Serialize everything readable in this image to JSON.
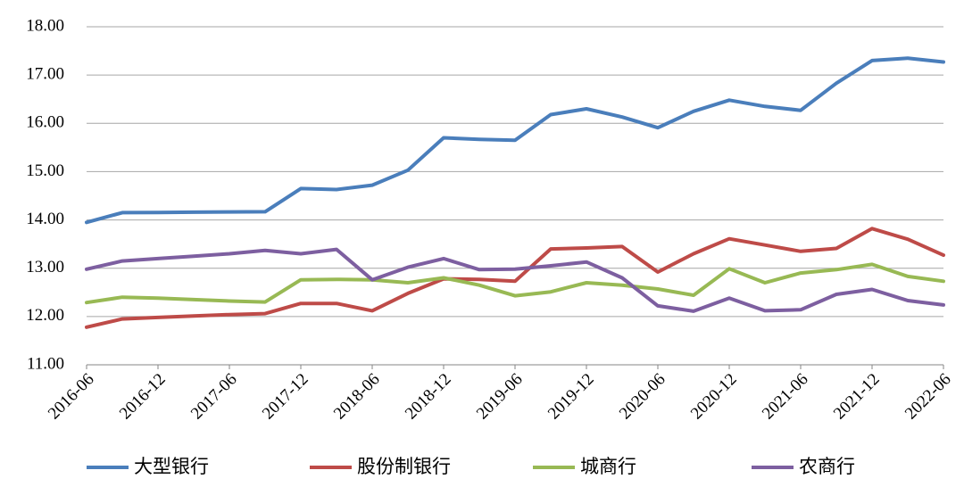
{
  "chart_data": {
    "type": "line",
    "categories": [
      "2016-06",
      null,
      "2016-12",
      null,
      "2017-06",
      null,
      "2017-12",
      null,
      "2018-06",
      null,
      "2018-12",
      null,
      "2019-06",
      null,
      "2019-12",
      null,
      "2020-06",
      null,
      "2020-12",
      null,
      "2021-06",
      null,
      "2021-12",
      null,
      "2022-06"
    ],
    "series": [
      {
        "name": "大型银行",
        "color": "#4a7ebb",
        "values": [
          13.95,
          14.15,
          14.155,
          14.16,
          14.165,
          14.17,
          14.65,
          14.63,
          14.72,
          15.03,
          15.7,
          15.67,
          15.65,
          16.18,
          16.3,
          16.13,
          15.91,
          16.25,
          16.48,
          16.35,
          16.27,
          16.83,
          17.3,
          17.35,
          17.27
        ]
      },
      {
        "name": "股份制银行",
        "color": "#be4b48",
        "values": [
          11.78,
          11.95,
          11.98,
          12.01,
          12.04,
          12.06,
          12.27,
          12.27,
          12.12,
          12.48,
          12.78,
          12.77,
          12.73,
          13.4,
          13.42,
          13.45,
          12.92,
          13.3,
          13.61,
          13.48,
          13.35,
          13.41,
          13.82,
          13.6,
          13.27
        ]
      },
      {
        "name": "城商行",
        "color": "#98b954",
        "values": [
          12.29,
          12.4,
          12.38,
          12.35,
          12.32,
          12.3,
          12.76,
          12.77,
          12.76,
          12.7,
          12.8,
          12.65,
          12.43,
          12.51,
          12.7,
          12.65,
          12.57,
          12.44,
          12.99,
          12.7,
          12.9,
          12.97,
          13.08,
          12.83,
          12.73
        ]
      },
      {
        "name": "农商行",
        "color": "#7d5fa0",
        "values": [
          12.98,
          13.15,
          13.2,
          13.25,
          13.3,
          13.37,
          13.3,
          13.39,
          12.76,
          13.02,
          13.2,
          12.97,
          12.98,
          13.05,
          13.13,
          12.8,
          12.22,
          12.11,
          12.38,
          12.12,
          12.14,
          12.46,
          12.56,
          12.33,
          12.24
        ]
      }
    ],
    "ylim": [
      11,
      18
    ],
    "yticks": [
      {
        "value": 11,
        "label": "11.00"
      },
      {
        "value": 12,
        "label": "12.00"
      },
      {
        "value": 13,
        "label": "13.00"
      },
      {
        "value": 14,
        "label": "14.00"
      },
      {
        "value": 15,
        "label": "15.00"
      },
      {
        "value": 16,
        "label": "16.00"
      },
      {
        "value": 17,
        "label": "17.00"
      },
      {
        "value": 18,
        "label": "18.00"
      }
    ],
    "grid": true,
    "legend": "bottom"
  }
}
